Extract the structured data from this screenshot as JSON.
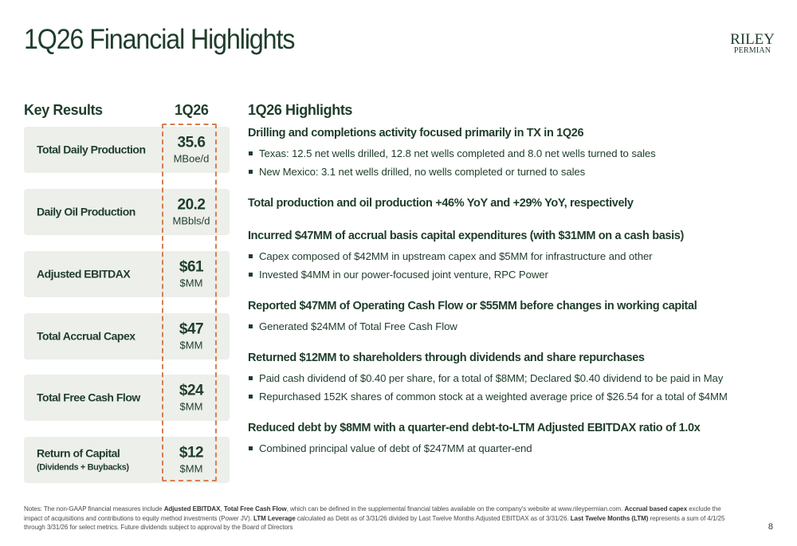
{
  "title": "1Q26 Financial Highlights",
  "logo": {
    "line1": "RILEY",
    "line2": "PERMIAN"
  },
  "key_results": {
    "heading": "Key Results",
    "period_heading": "1Q26",
    "items": [
      {
        "label": "Total Daily Production",
        "sublabel": "",
        "value": "35.6",
        "unit": "MBoe/d"
      },
      {
        "label": "Daily Oil Production",
        "sublabel": "",
        "value": "20.2",
        "unit": "MBbls/d"
      },
      {
        "label": "Adjusted EBITDAX",
        "sublabel": "",
        "value": "$61",
        "unit": "$MM"
      },
      {
        "label": "Total Accrual Capex",
        "sublabel": "",
        "value": "$47",
        "unit": "$MM"
      },
      {
        "label": "Total Free Cash Flow",
        "sublabel": "",
        "value": "$24",
        "unit": "$MM"
      },
      {
        "label": "Return of Capital",
        "sublabel": "(Dividends + Buybacks)",
        "value": "$12",
        "unit": "$MM"
      }
    ]
  },
  "highlights": {
    "heading": "1Q26 Highlights",
    "sections": [
      {
        "title": "Drilling and completions activity focused primarily in TX in 1Q26",
        "bullets": [
          "Texas: 12.5 net wells drilled, 12.8 net wells completed and 8.0 net wells turned to sales",
          "New Mexico: 3.1 net wells drilled, no wells completed or turned to sales"
        ]
      },
      {
        "title": "Total production and oil production +46% YoY and +29% YoY, respectively",
        "bullets": []
      },
      {
        "title": "Incurred $47MM of accrual basis capital expenditures (with $31MM on a cash basis)",
        "bullets": [
          "Capex composed of $42MM in upstream capex and $5MM for infrastructure and other",
          "Invested $4MM in our power-focused joint venture, RPC Power"
        ]
      },
      {
        "title": "Reported $47MM of Operating Cash Flow or $55MM before changes in working capital",
        "bullets": [
          "Generated $24MM of Total Free Cash Flow"
        ]
      },
      {
        "title": "Returned $12MM to shareholders through dividends and share repurchases",
        "bullets": [
          "Paid cash dividend of $0.40 per share, for a total of $8MM; Declared $0.40 dividend to be paid in May",
          "Repurchased 152K shares of common stock at a weighted average price of $26.54 for a total of $4MM"
        ]
      },
      {
        "title": "Reduced debt by $8MM with a quarter-end debt-to-LTM Adjusted EBITDAX ratio of 1.0x",
        "bullets": [
          "Combined principal value of debt of $247MM at quarter-end"
        ]
      }
    ]
  },
  "notes": {
    "prefix": "Notes: The non-GAAP financial measures include ",
    "t1": "Adjusted EBITDAX",
    "s1": ", ",
    "t2": "Total Free Cash Flow",
    "s2": ", which can be defined in the supplemental financial tables available on the company's website at www.rileypermian.com. ",
    "t3": "Accrual based capex",
    "s3": " exclude the impact of acquisitions and contributions to equity method investments (Power JV). ",
    "t4": "LTM Leverage",
    "s4": " calculated as Debt as of 3/31/26 divided by Last Twelve Months Adjusted EBITDAX as of 3/31/26.  ",
    "t5": "Last Twelve Months (LTM)",
    "s5": " represents a sum of 4/1/25 through 3/31/26 for select metrics. Future dividends subject to approval by the Board of Directors"
  },
  "page_number": "8",
  "colors": {
    "primary": "#1f3d2b",
    "card_bg": "#ecefea",
    "dash_accent": "#d97d4e"
  }
}
